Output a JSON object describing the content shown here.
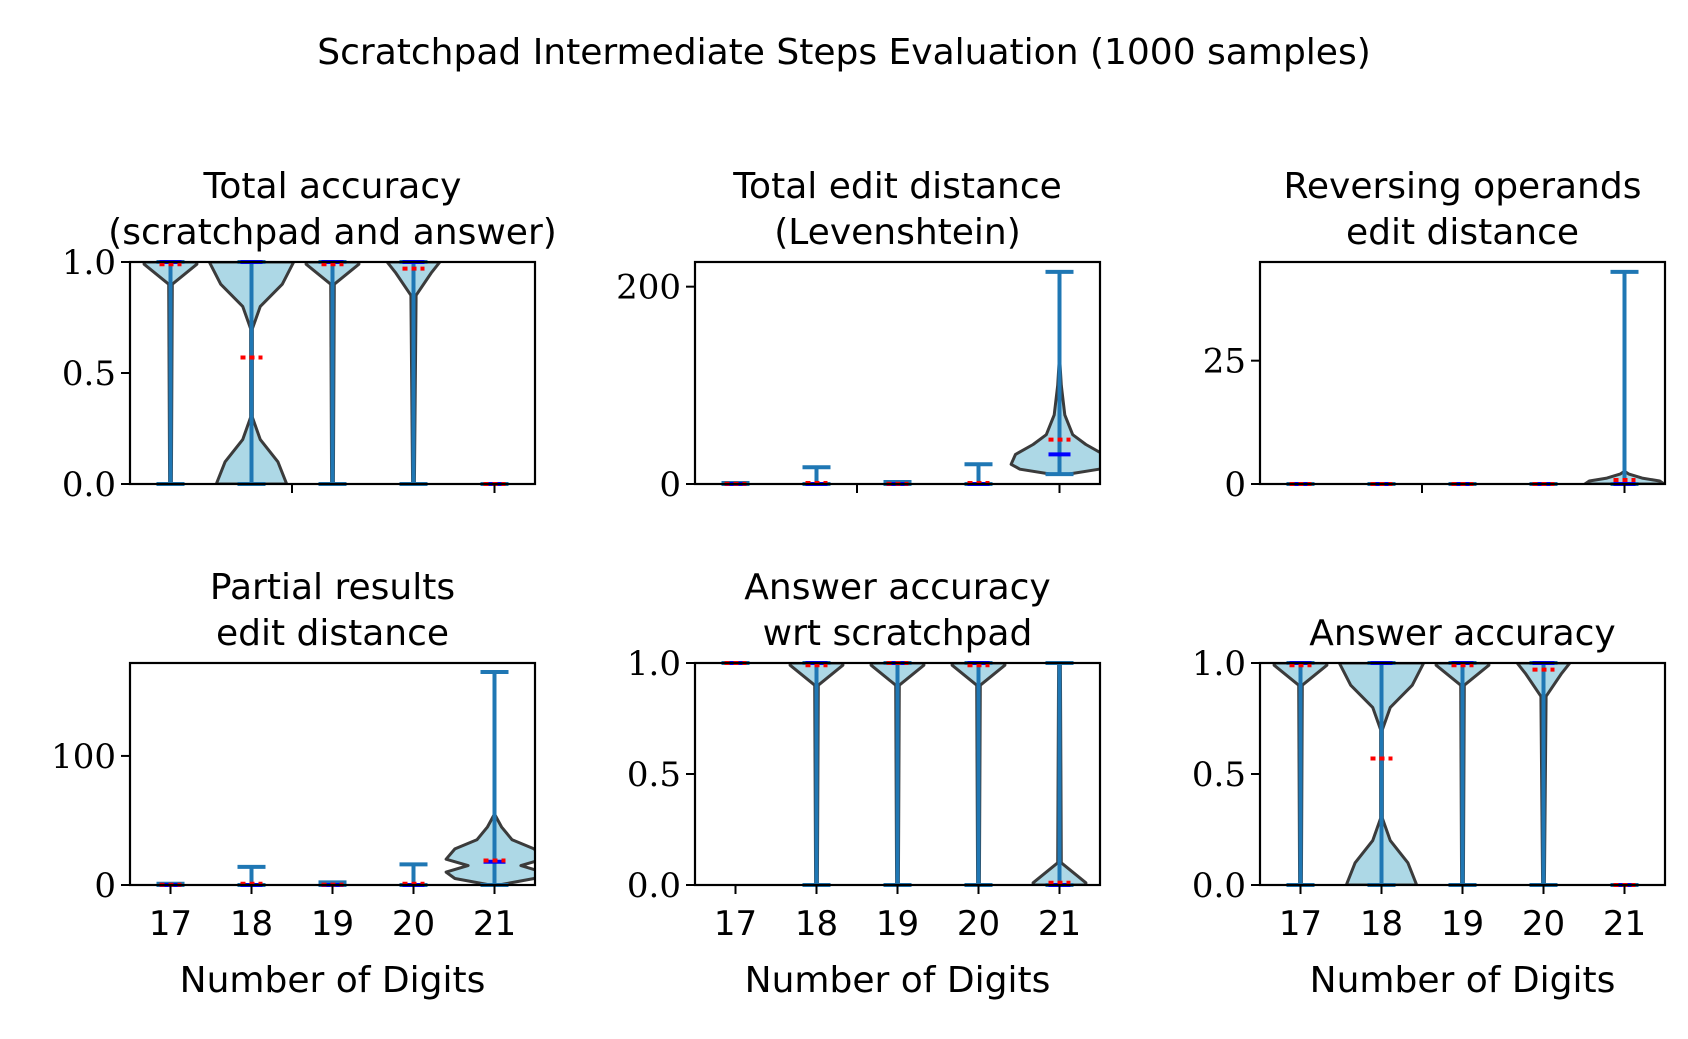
{
  "figure": {
    "title": "Scratchpad Intermediate Steps Evaluation (1000 samples)"
  },
  "colors": {
    "violin_fill": "#add8e6",
    "violin_edge": "#3b3b3b",
    "range_line": "#1f77b4",
    "mean_marker": "#ff0000",
    "median_marker": "#0000ff"
  },
  "chart_data": [
    {
      "type": "violin",
      "title_lines": [
        "Total accuracy",
        "(scratchpad and answer)"
      ],
      "xlabel": "",
      "ylim": [
        0,
        1.0
      ],
      "yticks": [
        0.0,
        0.5,
        1.0
      ],
      "ytick_labels": [
        "0.0",
        "0.5",
        "1.0"
      ],
      "categories": [
        17,
        18,
        19,
        20,
        21
      ],
      "series": [
        {
          "x": 17,
          "min": 0,
          "max": 1.0,
          "mean": 0.99,
          "median": 1.0,
          "profile": [
            [
              0,
              0.01
            ],
            [
              0.9,
              0.02
            ],
            [
              0.99,
              0.3
            ],
            [
              1.0,
              0.3
            ]
          ]
        },
        {
          "x": 18,
          "min": 0,
          "max": 1.0,
          "mean": 0.57,
          "median": 1.0,
          "profile": [
            [
              0,
              0.4
            ],
            [
              0.1,
              0.3
            ],
            [
              0.2,
              0.1
            ],
            [
              0.3,
              0.01
            ],
            [
              0.7,
              0.01
            ],
            [
              0.8,
              0.1
            ],
            [
              0.9,
              0.35
            ],
            [
              1.0,
              0.48
            ]
          ]
        },
        {
          "x": 19,
          "min": 0,
          "max": 1.0,
          "mean": 0.99,
          "median": 1.0,
          "profile": [
            [
              0,
              0.01
            ],
            [
              0.9,
              0.02
            ],
            [
              0.99,
              0.3
            ],
            [
              1.0,
              0.3
            ]
          ]
        },
        {
          "x": 20,
          "min": 0,
          "max": 1.0,
          "mean": 0.97,
          "median": 1.0,
          "profile": [
            [
              0,
              0.01
            ],
            [
              0.85,
              0.03
            ],
            [
              0.95,
              0.2
            ],
            [
              1.0,
              0.3
            ]
          ]
        },
        {
          "x": 21,
          "min": 0,
          "max": 0,
          "mean": 0,
          "median": 0,
          "profile": []
        }
      ]
    },
    {
      "type": "violin",
      "title_lines": [
        "Total edit distance",
        "(Levenshtein)"
      ],
      "xlabel": "",
      "ylim": [
        0,
        225
      ],
      "yticks": [
        0,
        200
      ],
      "ytick_labels": [
        "0",
        "200"
      ],
      "categories": [
        17,
        18,
        19,
        20,
        21
      ],
      "series": [
        {
          "x": 17,
          "min": 0,
          "max": 1,
          "mean": 0.2,
          "median": 0,
          "profile": []
        },
        {
          "x": 18,
          "min": 0,
          "max": 17,
          "mean": 1,
          "median": 0,
          "profile": []
        },
        {
          "x": 19,
          "min": 0,
          "max": 2,
          "mean": 0.3,
          "median": 0,
          "profile": []
        },
        {
          "x": 20,
          "min": 0,
          "max": 20,
          "mean": 1,
          "median": 0,
          "profile": []
        },
        {
          "x": 21,
          "min": 10,
          "max": 215,
          "mean": 45,
          "median": 30,
          "profile": [
            [
              10,
              0.1
            ],
            [
              15,
              0.45
            ],
            [
              20,
              0.55
            ],
            [
              30,
              0.5
            ],
            [
              40,
              0.3
            ],
            [
              50,
              0.15
            ],
            [
              70,
              0.06
            ],
            [
              100,
              0.02
            ],
            [
              130,
              0.0
            ]
          ]
        }
      ]
    },
    {
      "type": "violin",
      "title_lines": [
        "Reversing operands",
        "edit distance"
      ],
      "xlabel": "",
      "ylim": [
        0,
        45
      ],
      "yticks": [
        0,
        25
      ],
      "ytick_labels": [
        "0",
        "25"
      ],
      "categories": [
        17,
        18,
        19,
        20,
        21
      ],
      "series": [
        {
          "x": 17,
          "min": 0,
          "max": 0,
          "mean": 0,
          "median": 0,
          "profile": []
        },
        {
          "x": 18,
          "min": 0,
          "max": 0,
          "mean": 0,
          "median": 0,
          "profile": []
        },
        {
          "x": 19,
          "min": 0,
          "max": 0,
          "mean": 0,
          "median": 0,
          "profile": []
        },
        {
          "x": 20,
          "min": 0,
          "max": 0,
          "mean": 0,
          "median": 0,
          "profile": []
        },
        {
          "x": 21,
          "min": 0,
          "max": 43,
          "mean": 0.8,
          "median": 0,
          "profile": [
            [
              0,
              0.45
            ],
            [
              0.6,
              0.4
            ],
            [
              1.2,
              0.2
            ],
            [
              2,
              0.05
            ],
            [
              2.6,
              0.0
            ]
          ]
        }
      ]
    },
    {
      "type": "violin",
      "title_lines": [
        "Partial results",
        "edit distance"
      ],
      "xlabel": "Number of Digits",
      "ylim": [
        0,
        172
      ],
      "yticks": [
        0,
        100
      ],
      "ytick_labels": [
        "0",
        "100"
      ],
      "categories": [
        17,
        18,
        19,
        20,
        21
      ],
      "series": [
        {
          "x": 17,
          "min": 0,
          "max": 1,
          "mean": 0.2,
          "median": 0,
          "profile": []
        },
        {
          "x": 18,
          "min": 0,
          "max": 14,
          "mean": 1,
          "median": 0,
          "profile": []
        },
        {
          "x": 19,
          "min": 0,
          "max": 2,
          "mean": 0.3,
          "median": 0,
          "profile": []
        },
        {
          "x": 20,
          "min": 0,
          "max": 16,
          "mean": 1,
          "median": 0,
          "profile": []
        },
        {
          "x": 21,
          "min": 0,
          "max": 165,
          "mean": 19,
          "median": 18,
          "profile": [
            [
              0,
              0.05
            ],
            [
              5,
              0.45
            ],
            [
              10,
              0.55
            ],
            [
              15,
              0.3
            ],
            [
              20,
              0.55
            ],
            [
              28,
              0.45
            ],
            [
              35,
              0.2
            ],
            [
              45,
              0.08
            ],
            [
              55,
              0.0
            ]
          ]
        }
      ]
    },
    {
      "type": "violin",
      "title_lines": [
        "Answer accuracy",
        "wrt scratchpad"
      ],
      "xlabel": "Number of Digits",
      "ylim": [
        0,
        1.0
      ],
      "yticks": [
        0.0,
        0.5,
        1.0
      ],
      "ytick_labels": [
        "0.0",
        "0.5",
        "1.0"
      ],
      "categories": [
        17,
        18,
        19,
        20,
        21
      ],
      "series": [
        {
          "x": 17,
          "min": 1.0,
          "max": 1.0,
          "mean": 1.0,
          "median": 1.0,
          "profile": []
        },
        {
          "x": 18,
          "min": 0,
          "max": 1.0,
          "mean": 0.99,
          "median": 1.0,
          "profile": [
            [
              0,
              0.01
            ],
            [
              0.9,
              0.02
            ],
            [
              0.99,
              0.3
            ],
            [
              1.0,
              0.3
            ]
          ]
        },
        {
          "x": 19,
          "min": 0,
          "max": 1.0,
          "mean": 1.0,
          "median": 1.0,
          "profile": [
            [
              0,
              0.01
            ],
            [
              0.9,
              0.02
            ],
            [
              0.99,
              0.3
            ],
            [
              1.0,
              0.3
            ]
          ]
        },
        {
          "x": 20,
          "min": 0,
          "max": 1.0,
          "mean": 0.99,
          "median": 1.0,
          "profile": [
            [
              0,
              0.01
            ],
            [
              0.9,
              0.02
            ],
            [
              0.99,
              0.3
            ],
            [
              1.0,
              0.3
            ]
          ]
        },
        {
          "x": 21,
          "min": 0,
          "max": 1.0,
          "mean": 0.01,
          "median": 0.0,
          "profile": [
            [
              0,
              0.3
            ],
            [
              0.01,
              0.3
            ],
            [
              0.1,
              0.02
            ],
            [
              1.0,
              0.01
            ]
          ]
        }
      ]
    },
    {
      "type": "violin",
      "title_lines": [
        "Answer accuracy"
      ],
      "xlabel": "Number of Digits",
      "ylim": [
        0,
        1.0
      ],
      "yticks": [
        0.0,
        0.5,
        1.0
      ],
      "ytick_labels": [
        "0.0",
        "0.5",
        "1.0"
      ],
      "categories": [
        17,
        18,
        19,
        20,
        21
      ],
      "series": [
        {
          "x": 17,
          "min": 0,
          "max": 1.0,
          "mean": 0.99,
          "median": 1.0,
          "profile": [
            [
              0,
              0.01
            ],
            [
              0.9,
              0.02
            ],
            [
              0.99,
              0.3
            ],
            [
              1.0,
              0.3
            ]
          ]
        },
        {
          "x": 18,
          "min": 0,
          "max": 1.0,
          "mean": 0.57,
          "median": 1.0,
          "profile": [
            [
              0,
              0.4
            ],
            [
              0.1,
              0.3
            ],
            [
              0.2,
              0.1
            ],
            [
              0.3,
              0.01
            ],
            [
              0.7,
              0.01
            ],
            [
              0.8,
              0.1
            ],
            [
              0.9,
              0.35
            ],
            [
              1.0,
              0.48
            ]
          ]
        },
        {
          "x": 19,
          "min": 0,
          "max": 1.0,
          "mean": 0.99,
          "median": 1.0,
          "profile": [
            [
              0,
              0.01
            ],
            [
              0.9,
              0.02
            ],
            [
              0.99,
              0.3
            ],
            [
              1.0,
              0.3
            ]
          ]
        },
        {
          "x": 20,
          "min": 0,
          "max": 1.0,
          "mean": 0.97,
          "median": 1.0,
          "profile": [
            [
              0,
              0.01
            ],
            [
              0.85,
              0.03
            ],
            [
              0.95,
              0.2
            ],
            [
              1.0,
              0.3
            ]
          ]
        },
        {
          "x": 21,
          "min": 0,
          "max": 0,
          "mean": 0,
          "median": 0,
          "profile": []
        }
      ]
    }
  ]
}
